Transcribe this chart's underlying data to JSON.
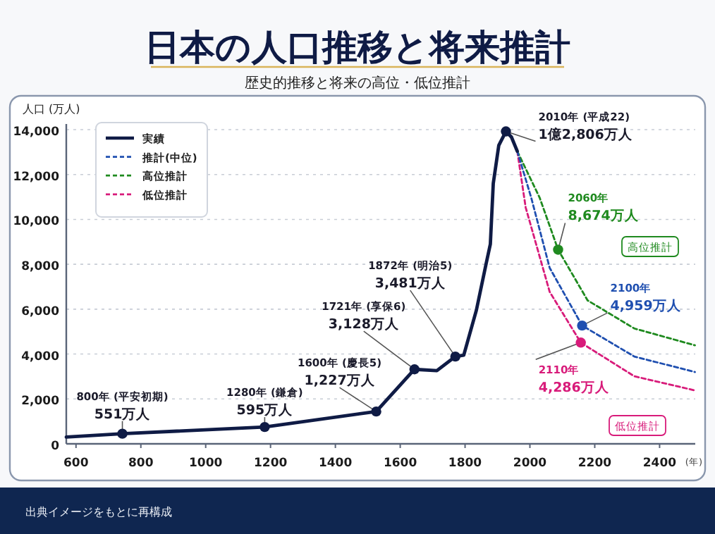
{
  "chart_data": {
    "type": "line",
    "title": "日本の人口推移と将来推計",
    "subtitle": "歴史的推移と将来の高位・低位推計",
    "ylabel": "人口 (万人)",
    "xlabel": "(年)",
    "xlim": [
      570,
      2510
    ],
    "xticks": [
      600,
      800,
      1000,
      1200,
      1400,
      1600,
      1800,
      2000,
      2200,
      2400
    ],
    "ylim": [
      0,
      14000
    ],
    "yticks": [
      {
        "value": 0,
        "label": "0"
      },
      {
        "value": 2000,
        "label": "2,000"
      },
      {
        "value": 4000,
        "label": "4,000"
      },
      {
        "value": 6000,
        "label": "6,000"
      },
      {
        "value": 8000,
        "label": "8,000"
      },
      {
        "value": 10000,
        "label": "10,000"
      },
      {
        "value": 12000,
        "label": "12,000"
      },
      {
        "value": 14000,
        "label": "14,000"
      }
    ],
    "grid": "y",
    "legend": "top left",
    "marker": "none",
    "series": [
      {
        "name": "実績",
        "color": "#0f1b45",
        "line_style": "solid",
        "x": [
          570,
          743,
          1182,
          1526,
          1644,
          1713,
          1770,
          1796,
          1835,
          1865,
          1878,
          1887,
          1904,
          1926,
          1943,
          1961
        ],
        "values": [
          300,
          450,
          750,
          1440,
          3320,
          3260,
          3890,
          3950,
          5960,
          8030,
          8900,
          11600,
          13300,
          13920,
          13670,
          13040
        ]
      },
      {
        "name": "推計(中位)",
        "color": "#1f4fb0",
        "line_style": "dashed",
        "x": [
          1961,
          2004,
          2061,
          2161,
          2322,
          2509
        ],
        "values": [
          13040,
          10970,
          7840,
          5270,
          3890,
          3200
        ]
      },
      {
        "name": "高位推計",
        "color": "#1f8a1f",
        "line_style": "dashed",
        "x": [
          1961,
          2030,
          2087,
          2178,
          2322,
          2509
        ],
        "values": [
          13040,
          10970,
          8650,
          6390,
          5140,
          4390
        ]
      },
      {
        "name": "低位推計",
        "color": "#d81b7a",
        "line_style": "dashed",
        "x": [
          1961,
          1987,
          2061,
          2157,
          2322,
          2509
        ],
        "values": [
          13040,
          10530,
          6770,
          4510,
          3010,
          2380
        ]
      }
    ],
    "annotations": [
      {
        "text": "800年 (平安初期)\n551万人",
        "x": 743,
        "y": 450
      },
      {
        "text": "1280年 (鎌倉)\n595万人",
        "x": 1182,
        "y": 750
      },
      {
        "text": "1600年 (慶長5)\n1,227万人",
        "x": 1526,
        "y": 1440
      },
      {
        "text": "1721年 (享保6)\n3,128万人",
        "x": 1644,
        "y": 3320
      },
      {
        "text": "1872年 (明治5)\n3,481万人",
        "x": 1770,
        "y": 3890
      },
      {
        "text": "2010年 (平成22)\n1億2,806万人",
        "x": 1926,
        "y": 13920
      },
      {
        "text": "2060年\n8,674万人",
        "x": 2087,
        "y": 8650
      },
      {
        "text": "2100年\n4,959万人",
        "x": 2161,
        "y": 5270
      },
      {
        "text": "2110年\n4,286万人",
        "x": 2157,
        "y": 4510
      },
      "高位推計",
      "低位推計",
      "出典イメージをもとに再構成"
    ]
  }
}
